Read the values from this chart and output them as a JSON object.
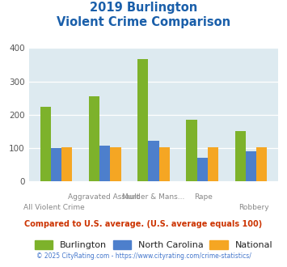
{
  "title_line1": "2019 Burlington",
  "title_line2": "Violent Crime Comparison",
  "top_labels": [
    "",
    "Aggravated Assault",
    "Murder & Mans...",
    "Rape",
    ""
  ],
  "bottom_labels": [
    "All Violent Crime",
    "",
    "",
    "",
    "Robbery"
  ],
  "burlington": [
    225,
    255,
    368,
    185,
    152
  ],
  "north_carolina": [
    100,
    108,
    122,
    72,
    90
  ],
  "national": [
    103,
    102,
    102,
    103,
    102
  ],
  "burlington_color": "#7db22b",
  "nc_color": "#4d7fcc",
  "national_color": "#f5a623",
  "bg_color": "#ddeaf0",
  "ylim": [
    0,
    400
  ],
  "yticks": [
    0,
    100,
    200,
    300,
    400
  ],
  "subtitle": "Compared to U.S. average. (U.S. average equals 100)",
  "footer": "© 2025 CityRating.com - https://www.cityrating.com/crime-statistics/",
  "title_color": "#1a5faa",
  "subtitle_color": "#cc3300",
  "footer_color": "#4477cc",
  "legend_labels": [
    "Burlington",
    "North Carolina",
    "National"
  ],
  "legend_text_color": "#222222"
}
